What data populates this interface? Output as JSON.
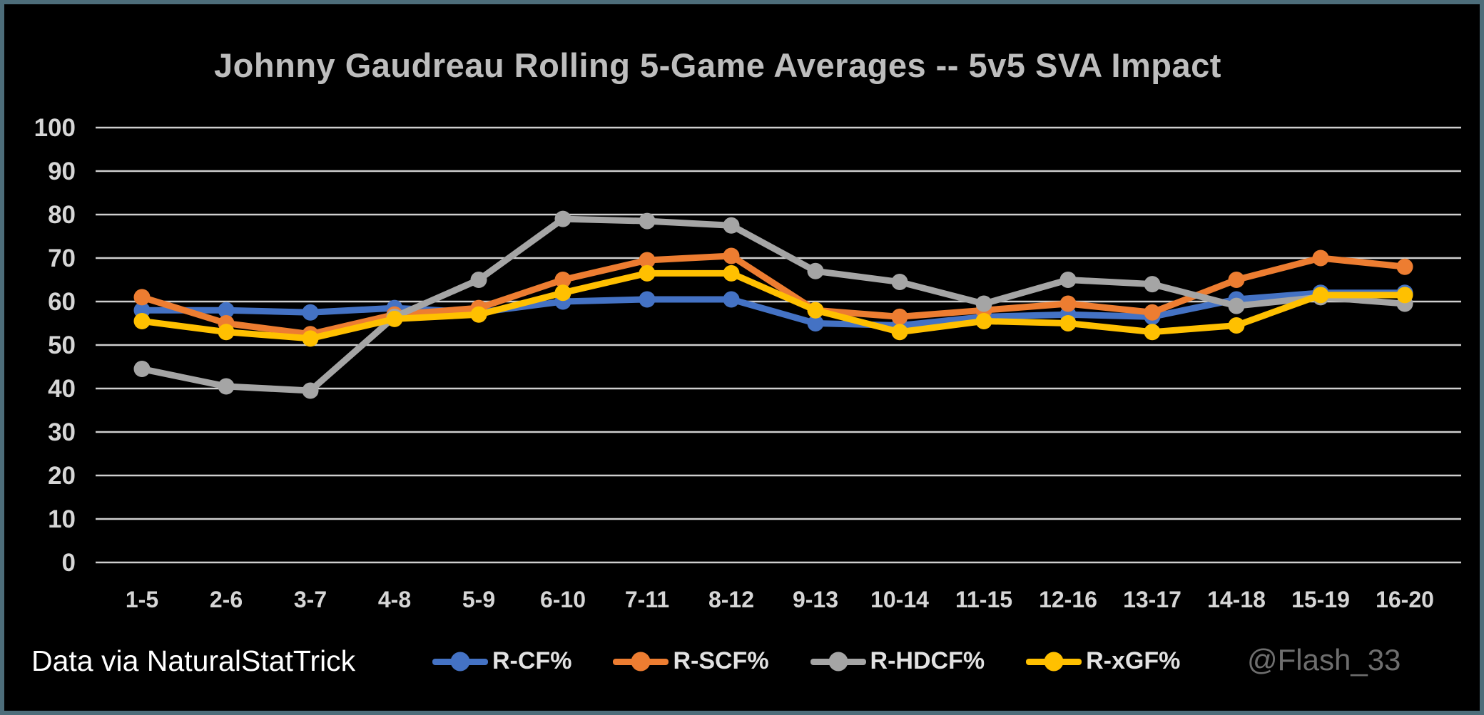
{
  "window": {
    "background": "#000000",
    "border_color": "#4d6d7a"
  },
  "chart_data": {
    "type": "line",
    "title": "Johnny Gaudreau Rolling 5-Game Averages -- 5v5 SVA Impact",
    "categories": [
      "1-5",
      "2-6",
      "3-7",
      "4-8",
      "5-9",
      "6-10",
      "7-11",
      "8-12",
      "9-13",
      "10-14",
      "11-15",
      "12-16",
      "13-17",
      "14-18",
      "15-19",
      "16-20"
    ],
    "series": [
      {
        "name": "R-CF%",
        "color": "#4472C4",
        "values": [
          58,
          58,
          57.5,
          58.5,
          57.5,
          60,
          60.5,
          60.5,
          55,
          54.5,
          56.5,
          57,
          56.5,
          60.5,
          62,
          62
        ]
      },
      {
        "name": "R-SCF%",
        "color": "#ED7D31",
        "values": [
          61,
          55,
          52.5,
          57,
          58.5,
          65,
          69.5,
          70.5,
          58,
          56.5,
          58,
          59.5,
          57.5,
          65,
          70,
          68
        ]
      },
      {
        "name": "R-HDCF%",
        "color": "#A5A5A5",
        "values": [
          44.5,
          40.5,
          39.5,
          56.5,
          65,
          79,
          78.5,
          77.5,
          67,
          64.5,
          59.5,
          65,
          64,
          59,
          61,
          59.5
        ]
      },
      {
        "name": "R-xGF%",
        "color": "#FFC000",
        "values": [
          55.5,
          53,
          51.5,
          56,
          57,
          62,
          66.5,
          66.5,
          58,
          53,
          55.5,
          55,
          53,
          54.5,
          61.5,
          61.5
        ]
      }
    ],
    "ylim": [
      0,
      100
    ],
    "yticks": [
      0,
      10,
      20,
      30,
      40,
      50,
      60,
      70,
      80,
      90,
      100
    ],
    "grid": true,
    "gridline_color": "#cfcfcf",
    "legend_position": "bottom"
  },
  "footer": {
    "source_text": "Data via NaturalStatTrick",
    "credit_text": "@Flash_33"
  }
}
